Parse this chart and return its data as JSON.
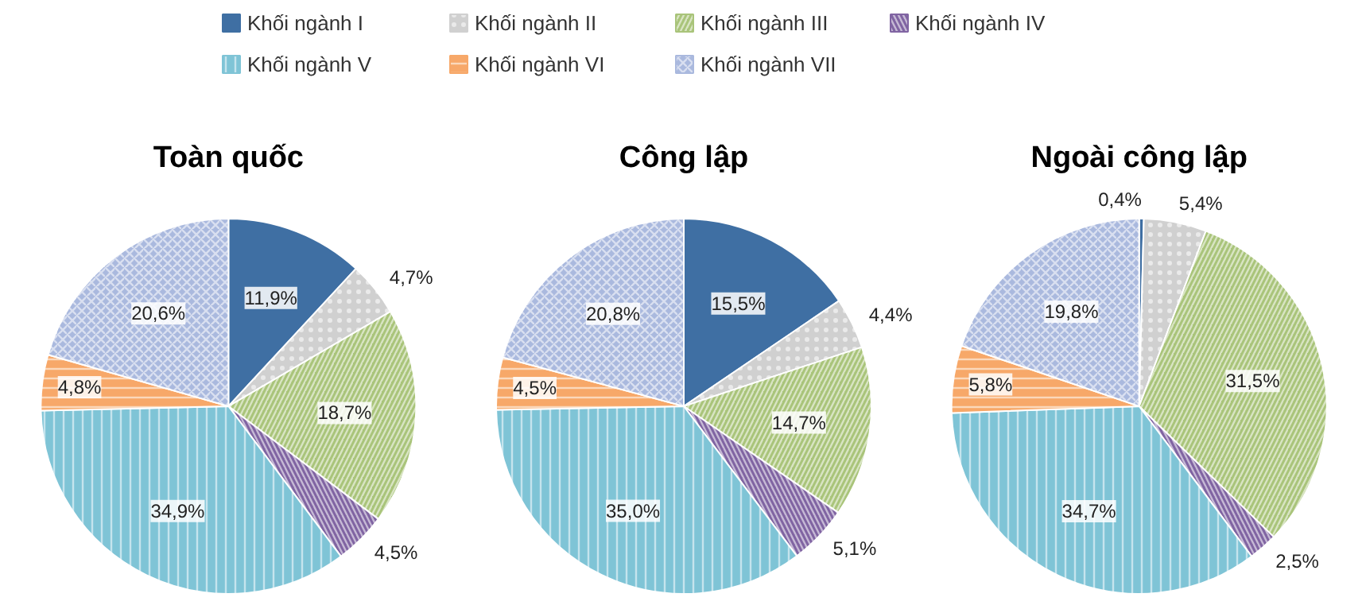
{
  "chart_data": [
    {
      "type": "pie",
      "title": "Toàn quốc",
      "legend": "top",
      "categories": [
        "Khối ngành I",
        "Khối ngành II",
        "Khối ngành III",
        "Khối ngành IV",
        "Khối ngành V",
        "Khối ngành VI",
        "Khối ngành VII"
      ],
      "values": [
        11.9,
        4.7,
        18.7,
        4.5,
        34.9,
        4.8,
        20.6
      ],
      "value_labels": [
        "11,9%",
        "4,7%",
        "18,7%",
        "4,5%",
        "34,9%",
        "4,8%",
        "20,6%"
      ],
      "colors": [
        "#3f6fa3",
        "#d0d0d0",
        "#a9c47a",
        "#8064a2",
        "#7fc4d6",
        "#f7a869",
        "#aab9de"
      ]
    },
    {
      "type": "pie",
      "title": "Công lập",
      "categories": [
        null,
        null,
        null,
        null,
        null,
        null,
        null
      ],
      "values": [
        15.5,
        4.4,
        14.7,
        5.1,
        35.0,
        4.5,
        20.8
      ],
      "value_labels": [
        "15,5%",
        "4,4%",
        "14,7%",
        "5,1%",
        "35,0%",
        "4,5%",
        "20,8%"
      ],
      "colors": [
        "#3f6fa3",
        "#d0d0d0",
        "#a9c47a",
        "#8064a2",
        "#7fc4d6",
        "#f7a869",
        "#aab9de"
      ]
    },
    {
      "type": "pie",
      "title": "Ngoài công lập",
      "categories": [
        null,
        null,
        null,
        null,
        null,
        null,
        null
      ],
      "values": [
        0.4,
        5.4,
        31.5,
        2.5,
        34.7,
        5.8,
        19.8
      ],
      "value_labels": [
        "0,4%",
        "5,4%",
        "31,5%",
        "2,5%",
        "34,7%",
        "5,8%",
        "19,8%"
      ],
      "colors": [
        "#3f6fa3",
        "#d0d0d0",
        "#a9c47a",
        "#8064a2",
        "#7fc4d6",
        "#f7a869",
        "#aab9de"
      ]
    }
  ]
}
